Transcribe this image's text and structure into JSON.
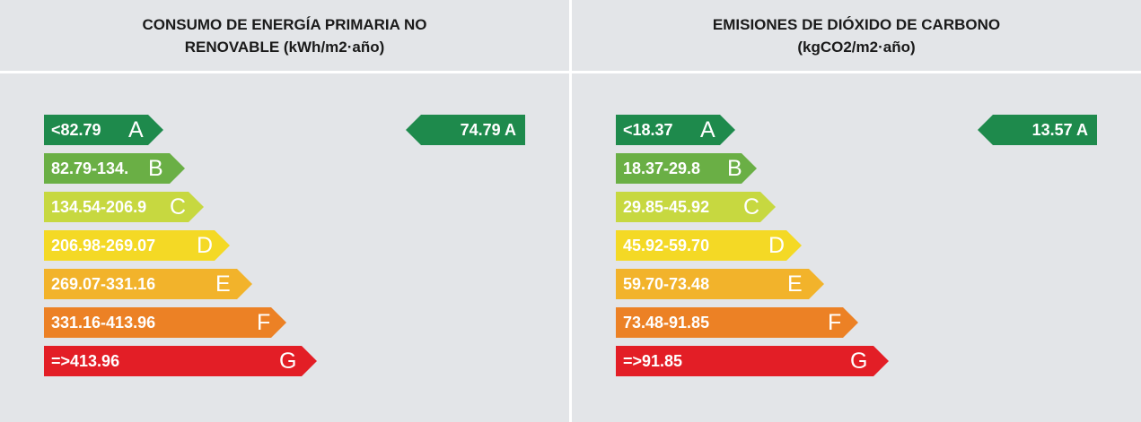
{
  "colors": {
    "A": "#1e8a4c",
    "B": "#6aaf45",
    "C": "#c7d840",
    "D": "#f4d925",
    "E": "#f2b32b",
    "F": "#ec8125",
    "G": "#e31e26"
  },
  "energy": {
    "title_line1": "CONSUMO DE ENERGÍA PRIMARIA NO",
    "title_line2": "RENOVABLE (kWh/m2·año)",
    "bands": [
      {
        "range": "<82.79",
        "letter": "A"
      },
      {
        "range": "82.79-134.",
        "letter": "B"
      },
      {
        "range": "134.54-206.9",
        "letter": "C"
      },
      {
        "range": "206.98-269.07",
        "letter": "D"
      },
      {
        "range": "269.07-331.16",
        "letter": "E"
      },
      {
        "range": "331.16-413.96",
        "letter": "F"
      },
      {
        "range": "=>413.96",
        "letter": "G"
      }
    ],
    "rating": {
      "value": "74.79",
      "letter": "A"
    }
  },
  "emissions": {
    "title_line1": "EMISIONES DE DIÓXIDO DE CARBONO",
    "title_line2": "(kgCO2/m2·año)",
    "bands": [
      {
        "range": "<18.37",
        "letter": "A"
      },
      {
        "range": "18.37-29.8",
        "letter": "B"
      },
      {
        "range": "29.85-45.92",
        "letter": "C"
      },
      {
        "range": "45.92-59.70",
        "letter": "D"
      },
      {
        "range": "59.70-73.48",
        "letter": "E"
      },
      {
        "range": "73.48-91.85",
        "letter": "F"
      },
      {
        "range": "=>91.85",
        "letter": "G"
      }
    ],
    "rating": {
      "value": "13.57",
      "letter": "A"
    }
  }
}
